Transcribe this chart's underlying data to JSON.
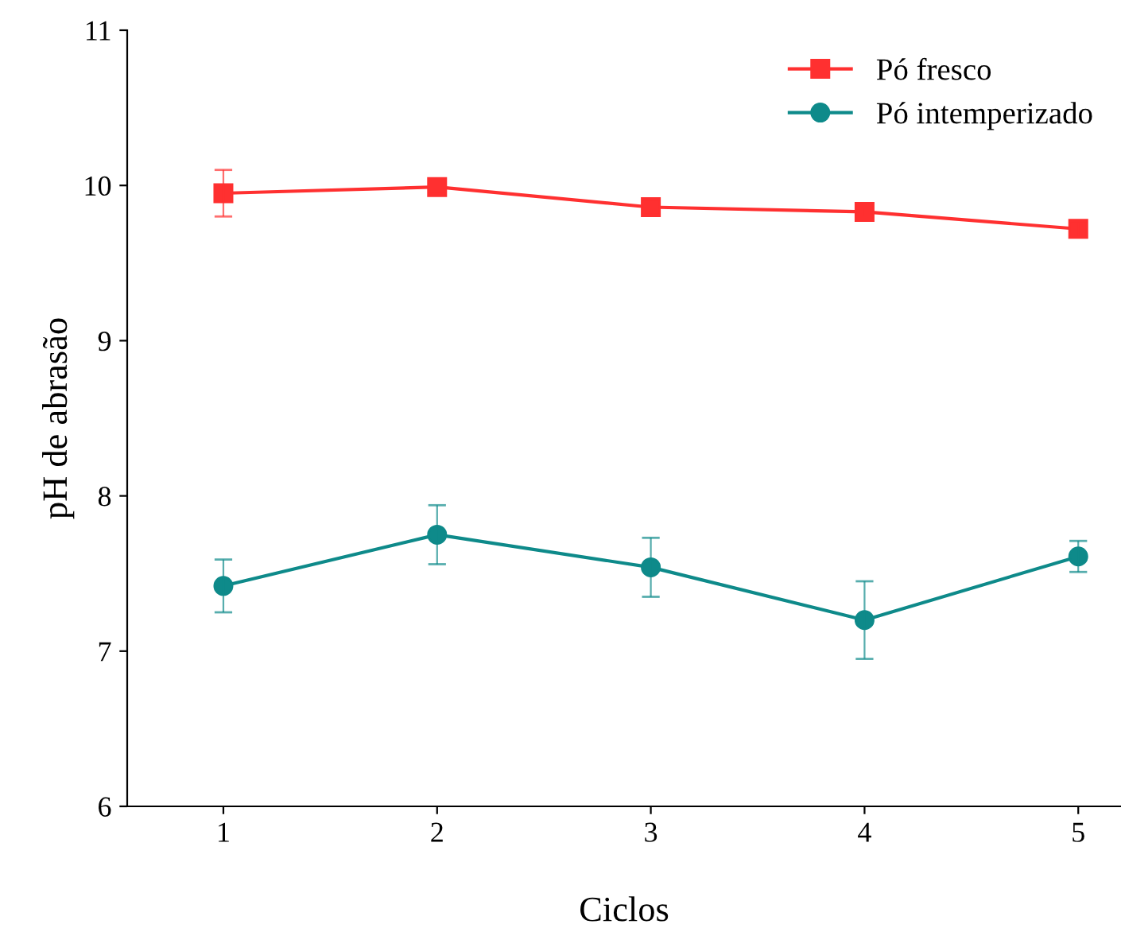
{
  "chart_data": {
    "type": "line",
    "xlabel": "Ciclos",
    "ylabel": "pH de abrasão",
    "x": [
      1,
      2,
      3,
      4,
      5
    ],
    "series": [
      {
        "name": "Pó fresco",
        "color": "#ff3030",
        "marker": "square",
        "values": [
          9.95,
          9.99,
          9.86,
          9.83,
          9.72
        ],
        "errors": [
          0.15,
          0.03,
          0.05,
          0.03,
          0.05
        ]
      },
      {
        "name": "Pó intemperizado",
        "color": "#0e8a8a",
        "marker": "circle",
        "values": [
          7.42,
          7.75,
          7.54,
          7.2,
          7.61
        ],
        "errors": [
          0.17,
          0.19,
          0.19,
          0.25,
          0.1
        ]
      }
    ],
    "xlim": [
      0.55,
      5.2
    ],
    "ylim": [
      6,
      11
    ],
    "xticks": [
      1,
      2,
      3,
      4,
      5
    ],
    "yticks": [
      6,
      7,
      8,
      9,
      10,
      11
    ],
    "grid": false,
    "legend": "top right",
    "line_style": "solid"
  }
}
